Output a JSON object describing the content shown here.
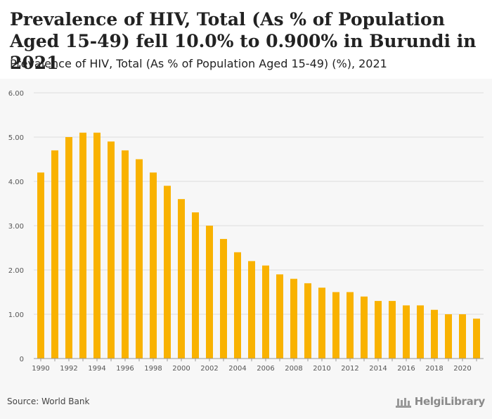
{
  "header": {
    "title": "Prevalence of HIV, Total (As % of Population Aged 15-49) fell 10.0% to 0.900% in Burundi in 2021",
    "subtitle": "Prevalence of HIV, Total (As % of Population Aged 15-49) (%), 2021"
  },
  "footer": {
    "source": "Source: World Bank",
    "logo": "HelgiLibrary"
  },
  "colors": {
    "bar": "#f9b200",
    "grid": "#dddddd",
    "axis_text": "#555555",
    "background": "#f7f7f7"
  },
  "chart_data": {
    "type": "bar",
    "title": "Prevalence of HIV, Total (As % of Population Aged 15-49) (%), 2021",
    "xlabel": "",
    "ylabel": "",
    "ylim": [
      0,
      6
    ],
    "yticks": [
      "0",
      "1.00",
      "2.00",
      "3.00",
      "4.00",
      "5.00",
      "6.00"
    ],
    "grid": true,
    "categories": [
      "1990",
      "1991",
      "1992",
      "1993",
      "1994",
      "1995",
      "1996",
      "1997",
      "1998",
      "1999",
      "2000",
      "2001",
      "2002",
      "2003",
      "2004",
      "2005",
      "2006",
      "2007",
      "2008",
      "2009",
      "2010",
      "2011",
      "2012",
      "2013",
      "2014",
      "2015",
      "2016",
      "2017",
      "2018",
      "2019",
      "2020",
      "2021"
    ],
    "xtick_labels": [
      "1990",
      "1992",
      "1994",
      "1996",
      "1998",
      "2000",
      "2002",
      "2004",
      "2006",
      "2008",
      "2010",
      "2012",
      "2014",
      "2016",
      "2018",
      "2020"
    ],
    "values": [
      4.2,
      4.7,
      5.0,
      5.1,
      5.1,
      4.9,
      4.7,
      4.5,
      4.2,
      3.9,
      3.6,
      3.3,
      3.0,
      2.7,
      2.4,
      2.2,
      2.1,
      1.9,
      1.8,
      1.7,
      1.6,
      1.5,
      1.5,
      1.4,
      1.3,
      1.3,
      1.2,
      1.2,
      1.1,
      1.0,
      1.0,
      0.9
    ]
  }
}
